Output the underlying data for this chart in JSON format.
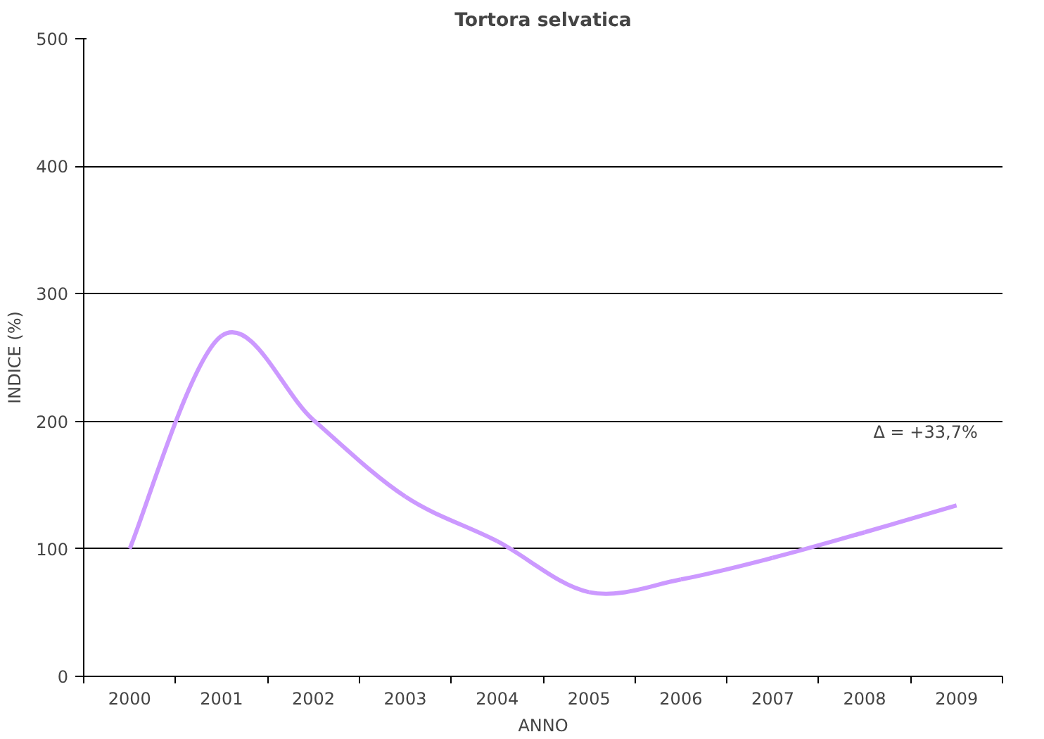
{
  "chart_data": {
    "type": "line",
    "title": "Tortora selvatica",
    "xlabel": "ANNO",
    "ylabel": "INDICE (%)",
    "categories": [
      "2000",
      "2001",
      "2002",
      "2003",
      "2004",
      "2005",
      "2006",
      "2007",
      "2008",
      "2009"
    ],
    "series": [
      {
        "color": "#cc99ff",
        "values": [
          100,
          267,
          201,
          141,
          106,
          66,
          76,
          93,
          113,
          134
        ]
      }
    ],
    "ylim": [
      0,
      500
    ],
    "yticks": [
      0,
      100,
      200,
      300,
      400,
      500
    ],
    "grid": "y",
    "marker": "none",
    "line_style": "solid",
    "annotations": [
      "Δ = +33,7%"
    ]
  }
}
